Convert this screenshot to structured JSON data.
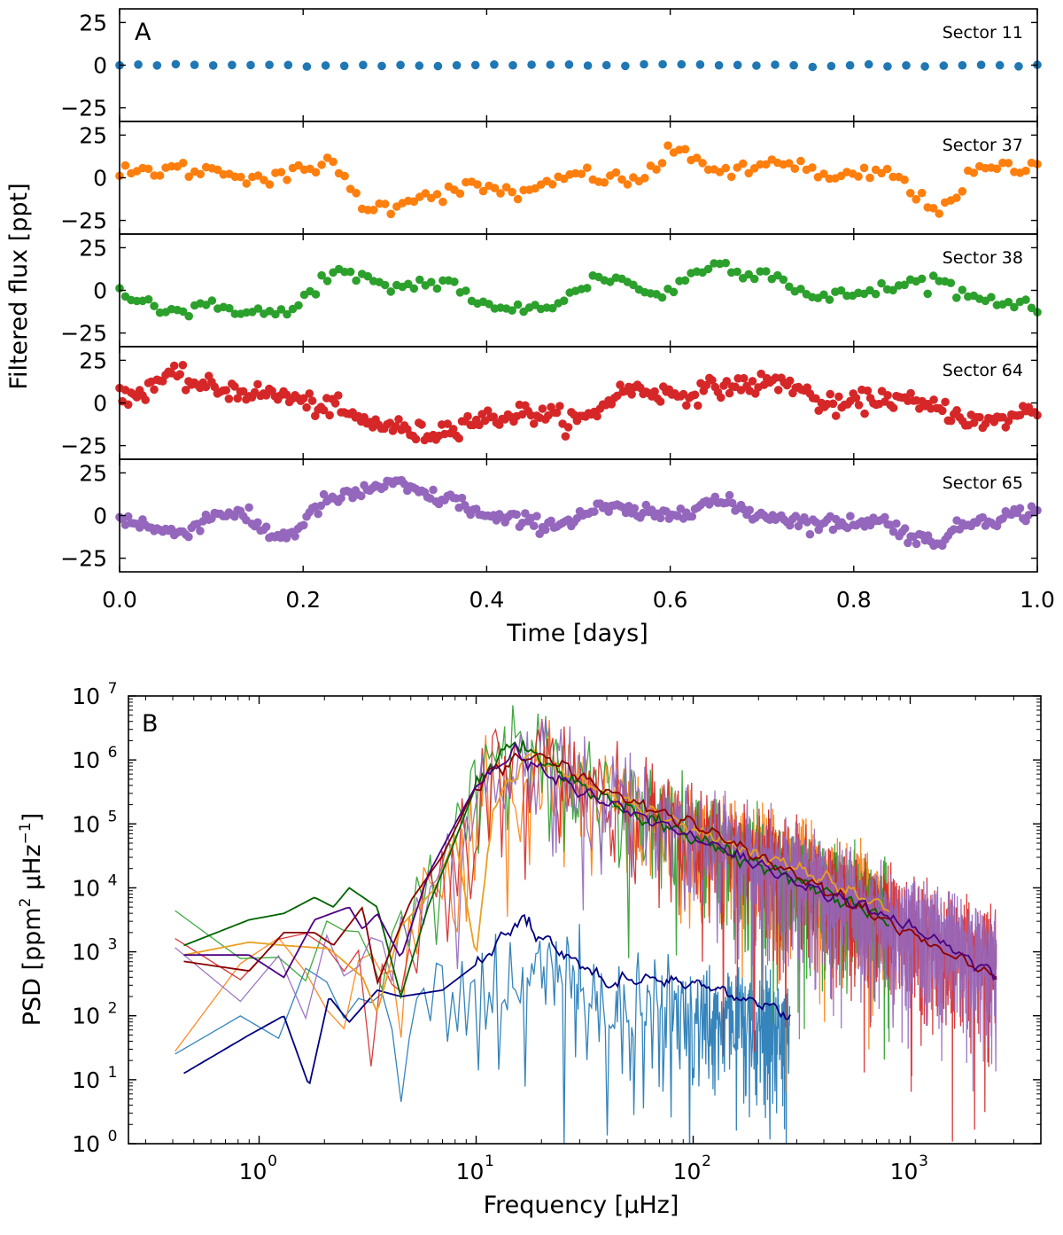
{
  "chart_data": [
    {
      "panel": "A",
      "type": "scatter",
      "xlabel": "Time [days]",
      "ylabel": "Filtered flux [ppt]",
      "xlim": [
        0.0,
        1.0
      ],
      "xticks": [
        "0.0",
        "0.2",
        "0.4",
        "0.6",
        "0.8",
        "1.0"
      ],
      "ylim": [
        -33,
        33
      ],
      "yticks": [
        "25",
        "0",
        "−25"
      ],
      "series": [
        {
          "name": "Sector 11",
          "color": "#1f77b4",
          "n": 50,
          "noise": 0.4,
          "knots": [
            0,
            0,
            0,
            0,
            0,
            0,
            0,
            0,
            0,
            0,
            0
          ]
        },
        {
          "name": "Sector 37",
          "color": "#ff7f0e",
          "n": 160,
          "noise": 2.5,
          "knots": [
            2,
            5,
            4,
            -1,
            8,
            -18,
            -10,
            -6,
            -9,
            2,
            -2,
            15,
            2,
            10,
            -1,
            3,
            -17,
            5,
            6
          ]
        },
        {
          "name": "Sector 38",
          "color": "#2ca02c",
          "n": 160,
          "noise": 2.3,
          "knots": [
            0,
            -12,
            -10,
            -14,
            10,
            2,
            5,
            -12,
            -8,
            8,
            -2,
            15,
            10,
            -5,
            0,
            6,
            -5,
            -8
          ]
        },
        {
          "name": "Sector 64",
          "color": "#d62728",
          "n": 320,
          "noise": 3.0,
          "knots": [
            2,
            15,
            8,
            5,
            -2,
            -12,
            -18,
            -10,
            -6,
            -10,
            8,
            5,
            10,
            12,
            -2,
            3,
            -3,
            -12,
            -4
          ]
        },
        {
          "name": "Sector 65",
          "color": "#9467bd",
          "n": 320,
          "noise": 2.3,
          "knots": [
            -2,
            -10,
            2,
            -12,
            10,
            18,
            10,
            -2,
            -5,
            4,
            0,
            8,
            0,
            -5,
            -3,
            -15,
            -2,
            2
          ]
        }
      ]
    },
    {
      "panel": "B",
      "type": "line",
      "xlabel": "Frequency [μHz]",
      "ylabel": "PSD [ppm",
      "ylabel_sup": "2",
      "ylabel_mid": " μHz",
      "ylabel_sup2": "−1",
      "ylabel_end": "]",
      "xscale": "log",
      "yscale": "log",
      "xlim": [
        0.25,
        4000
      ],
      "ylim": [
        1,
        10000000
      ],
      "xticks": [
        {
          "base": "10",
          "exp": "0"
        },
        {
          "base": "10",
          "exp": "1"
        },
        {
          "base": "10",
          "exp": "2"
        },
        {
          "base": "10",
          "exp": "3"
        }
      ],
      "yticks": [
        {
          "base": "10",
          "exp": "0"
        },
        {
          "base": "10",
          "exp": "1"
        },
        {
          "base": "10",
          "exp": "2"
        },
        {
          "base": "10",
          "exp": "3"
        },
        {
          "base": "10",
          "exp": "4"
        },
        {
          "base": "10",
          "exp": "5"
        },
        {
          "base": "10",
          "exp": "6"
        },
        {
          "base": "10",
          "exp": "7"
        }
      ],
      "raw_series": [
        {
          "name": "Sector 11",
          "color": "#1f77b4",
          "fmax": 280,
          "knots": [
            [
              0.4,
              2.0
            ],
            [
              10,
              2.5
            ],
            [
              16,
              3.0
            ],
            [
              30,
              2.5
            ],
            [
              60,
              2.2
            ],
            [
              100,
              2.2
            ],
            [
              280,
              2.0
            ]
          ]
        },
        {
          "name": "Sector 37",
          "color": "#ff7f0e",
          "fmax": 800,
          "knots": [
            [
              0.4,
              3.0
            ],
            [
              4,
              2.8
            ],
            [
              7,
              4.5
            ],
            [
              10,
              5.5
            ],
            [
              18,
              6.2
            ],
            [
              40,
              5.6
            ],
            [
              100,
              5.0
            ],
            [
              300,
              4.4
            ],
            [
              800,
              3.8
            ]
          ]
        },
        {
          "name": "Sector 38",
          "color": "#2ca02c",
          "fmax": 800,
          "knots": [
            [
              0.4,
              3.2
            ],
            [
              4,
              3.2
            ],
            [
              7,
              4.5
            ],
            [
              10,
              5.8
            ],
            [
              18,
              6.3
            ],
            [
              40,
              5.6
            ],
            [
              100,
              5.0
            ],
            [
              300,
              4.3
            ],
            [
              800,
              3.7
            ]
          ]
        },
        {
          "name": "Sector 64",
          "color": "#d62728",
          "fmax": 2500,
          "knots": [
            [
              0.4,
              3.0
            ],
            [
              5,
              3.0
            ],
            [
              8,
              4.6
            ],
            [
              12,
              5.9
            ],
            [
              18,
              6.2
            ],
            [
              40,
              5.6
            ],
            [
              100,
              5.0
            ],
            [
              300,
              4.3
            ],
            [
              1000,
              3.5
            ],
            [
              2500,
              3.0
            ]
          ]
        },
        {
          "name": "Sector 65",
          "color": "#9467bd",
          "fmax": 2500,
          "knots": [
            [
              0.4,
              3.0
            ],
            [
              5,
              3.2
            ],
            [
              8,
              4.6
            ],
            [
              12,
              5.9
            ],
            [
              18,
              6.2
            ],
            [
              40,
              5.6
            ],
            [
              100,
              5.0
            ],
            [
              300,
              4.3
            ],
            [
              1000,
              3.5
            ],
            [
              2500,
              3.0
            ]
          ]
        }
      ],
      "smooth_series": [
        {
          "name": "Sector 11",
          "color": "#000080",
          "fmax": 280,
          "knots": [
            [
              0.45,
              1.1
            ],
            [
              0.9,
              1.7
            ],
            [
              1.3,
              2.0
            ],
            [
              1.7,
              0.9
            ],
            [
              2.1,
              2.3
            ],
            [
              2.6,
              1.9
            ],
            [
              3.5,
              2.4
            ],
            [
              4.5,
              2.3
            ],
            [
              7,
              2.4
            ],
            [
              10,
              2.8
            ],
            [
              16,
              3.5
            ],
            [
              25,
              3.0
            ],
            [
              40,
              2.5
            ],
            [
              60,
              2.6
            ],
            [
              100,
              2.5
            ],
            [
              200,
              2.2
            ],
            [
              280,
              2.0
            ]
          ]
        },
        {
          "name": "Sector 37",
          "color": "#e8a020",
          "fmax": 800,
          "knots": [
            [
              0.45,
              2.95
            ],
            [
              0.9,
              3.15
            ],
            [
              1.3,
              3.1
            ],
            [
              2.1,
              3.05
            ],
            [
              3.0,
              2.6
            ],
            [
              3.5,
              2.05
            ],
            [
              4.5,
              3.4
            ],
            [
              6.5,
              4.0
            ],
            [
              8,
              4.8
            ],
            [
              10,
              2.9
            ],
            [
              12,
              5.3
            ],
            [
              18,
              6.1
            ],
            [
              30,
              5.7
            ],
            [
              60,
              5.2
            ],
            [
              100,
              4.9
            ],
            [
              300,
              4.3
            ],
            [
              800,
              3.7
            ]
          ]
        },
        {
          "name": "Sector 38",
          "color": "#006400",
          "fmax": 800,
          "knots": [
            [
              0.45,
              3.1
            ],
            [
              0.9,
              3.5
            ],
            [
              1.3,
              3.6
            ],
            [
              1.8,
              3.85
            ],
            [
              2.2,
              3.7
            ],
            [
              2.6,
              4.0
            ],
            [
              3.5,
              3.7
            ],
            [
              4.5,
              2.3
            ],
            [
              6,
              3.7
            ],
            [
              7.5,
              4.5
            ],
            [
              10,
              5.6
            ],
            [
              15,
              6.3
            ],
            [
              30,
              5.6
            ],
            [
              60,
              5.1
            ],
            [
              100,
              4.8
            ],
            [
              300,
              4.1
            ],
            [
              800,
              3.5
            ]
          ]
        },
        {
          "name": "Sector 64",
          "color": "#8b0000",
          "fmax": 2500,
          "knots": [
            [
              0.45,
              2.85
            ],
            [
              0.9,
              2.7
            ],
            [
              1.3,
              3.3
            ],
            [
              1.8,
              3.3
            ],
            [
              2.2,
              3.1
            ],
            [
              3.0,
              3.7
            ],
            [
              3.5,
              2.5
            ],
            [
              5,
              3.8
            ],
            [
              7,
              4.5
            ],
            [
              10,
              5.6
            ],
            [
              15,
              6.0
            ],
            [
              20,
              6.1
            ],
            [
              40,
              5.5
            ],
            [
              100,
              5.0
            ],
            [
              300,
              4.2
            ],
            [
              1000,
              3.3
            ],
            [
              2500,
              2.6
            ]
          ]
        },
        {
          "name": "Sector 65",
          "color": "#4b0082",
          "fmax": 2500,
          "knots": [
            [
              0.45,
              2.95
            ],
            [
              0.9,
              2.95
            ],
            [
              1.3,
              2.6
            ],
            [
              1.8,
              3.5
            ],
            [
              2.6,
              3.7
            ],
            [
              3.0,
              3.35
            ],
            [
              3.5,
              3.6
            ],
            [
              4.5,
              2.9
            ],
            [
              6,
              4.2
            ],
            [
              8,
              5.0
            ],
            [
              10,
              5.6
            ],
            [
              15,
              6.1
            ],
            [
              30,
              5.5
            ],
            [
              60,
              5.1
            ],
            [
              100,
              4.8
            ],
            [
              300,
              4.1
            ],
            [
              1000,
              3.4
            ],
            [
              2500,
              2.65
            ]
          ]
        }
      ]
    }
  ]
}
